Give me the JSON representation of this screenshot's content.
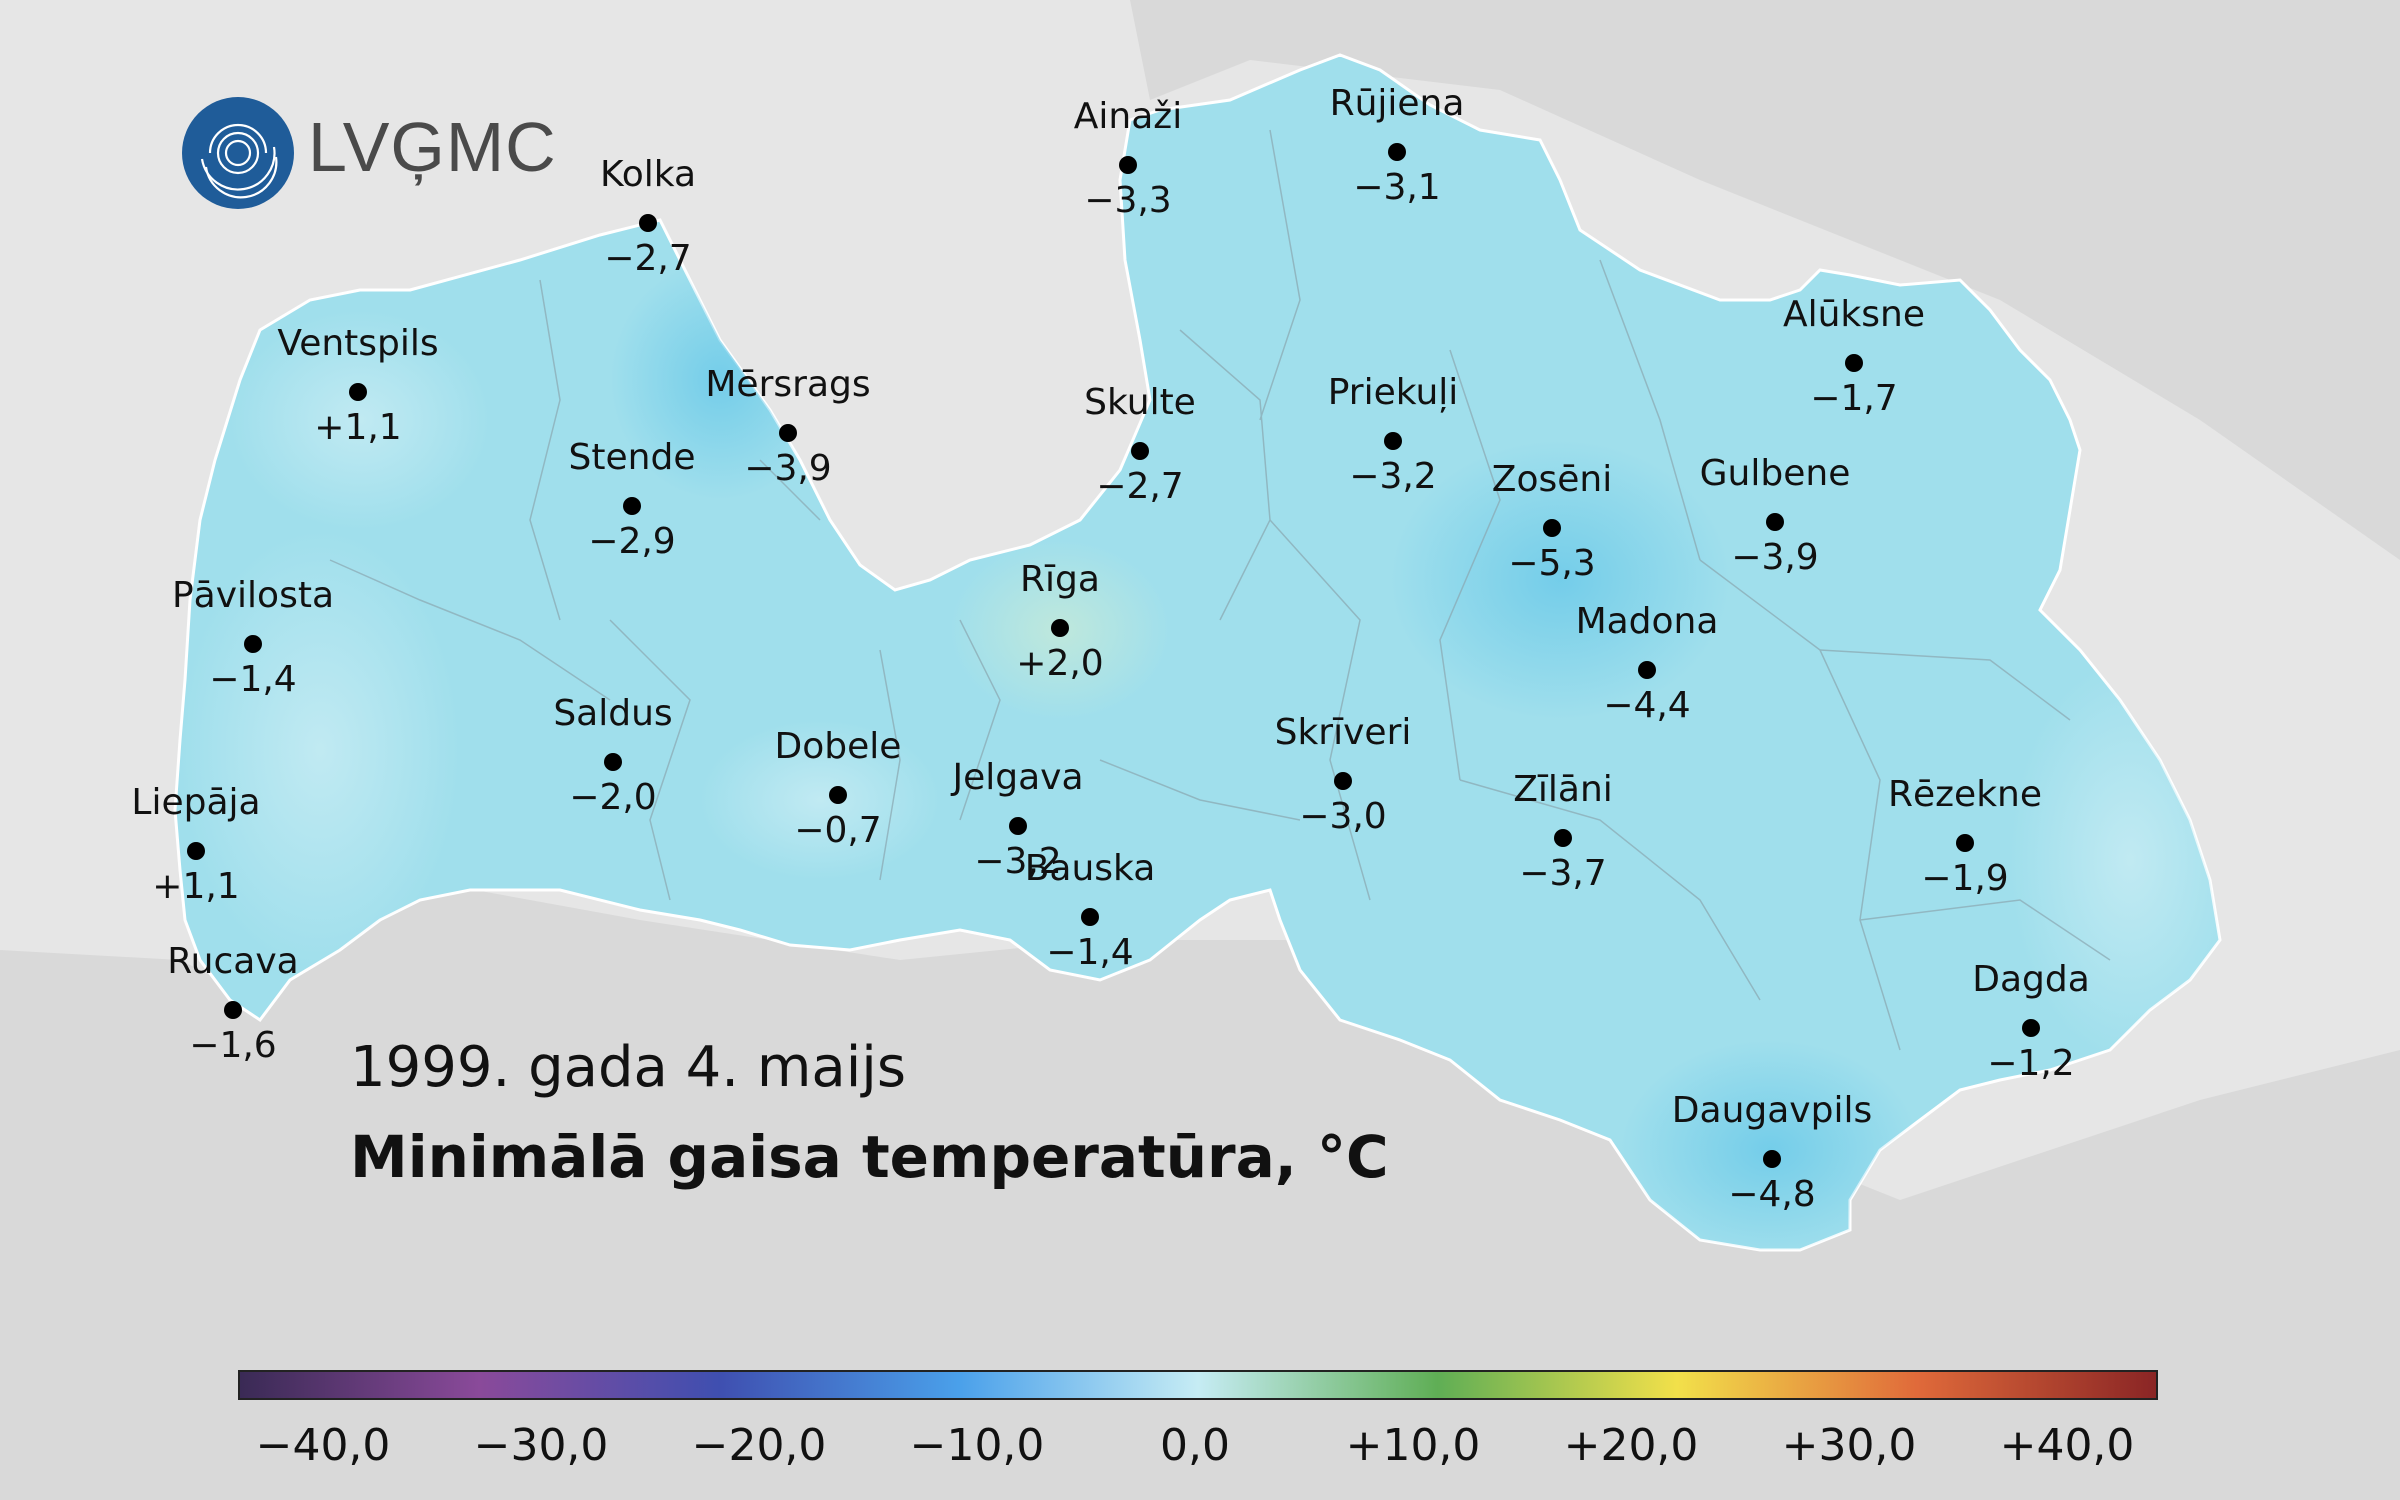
{
  "logo": {
    "text": "LVĢMC",
    "color": "#1f5c99"
  },
  "date": "1999. gada 4. maijs",
  "title": "Minimālā gaisa temperatūra, °C",
  "stations": [
    {
      "name": "Kolka",
      "value": "−2,7"
    },
    {
      "name": "Ainaži",
      "value": "−3,3"
    },
    {
      "name": "Rūjiena",
      "value": "−3,1"
    },
    {
      "name": "Ventspils",
      "value": "+1,1"
    },
    {
      "name": "Mērsrags",
      "value": "−3,9"
    },
    {
      "name": "Skulte",
      "value": "−2,7"
    },
    {
      "name": "Priekuļi",
      "value": "−3,2"
    },
    {
      "name": "Alūksne",
      "value": "−1,7"
    },
    {
      "name": "Stende",
      "value": "−2,9"
    },
    {
      "name": "Zosēni",
      "value": "−5,3"
    },
    {
      "name": "Gulbene",
      "value": "−3,9"
    },
    {
      "name": "Pāvilosta",
      "value": "−1,4"
    },
    {
      "name": "Rīga",
      "value": "+2,0"
    },
    {
      "name": "Madona",
      "value": "−4,4"
    },
    {
      "name": "Saldus",
      "value": "−2,0"
    },
    {
      "name": "Dobele",
      "value": "−0,7"
    },
    {
      "name": "Skrīveri",
      "value": "−3,0"
    },
    {
      "name": "Jelgava",
      "value": "−3,2"
    },
    {
      "name": "Zīlāni",
      "value": "−3,7"
    },
    {
      "name": "Rēzekne",
      "value": "−1,9"
    },
    {
      "name": "Liepāja",
      "value": "+1,1"
    },
    {
      "name": "Bauska",
      "value": "−1,4"
    },
    {
      "name": "Rucava",
      "value": "−1,6"
    },
    {
      "name": "Dagda",
      "value": "−1,2"
    },
    {
      "name": "Daugavpils",
      "value": "−4,8"
    }
  ],
  "legend": {
    "ticks": [
      "−40,0",
      "−30,0",
      "−20,0",
      "−10,0",
      "0,0",
      "+10,0",
      "+20,0",
      "+30,0",
      "+40,0"
    ],
    "colors": [
      "#3a2a55",
      "#8a4a9a",
      "#3f4fb0",
      "#4aa0ea",
      "#c6ecf4",
      "#5fae55",
      "#f2e04a",
      "#e06a3a",
      "#8a2525"
    ]
  },
  "colors": {
    "land_fill": "#a0dfec",
    "land_border": "#ffffff",
    "sea": "#e4e4e4",
    "neighbor_land": "#d6d6d6"
  }
}
